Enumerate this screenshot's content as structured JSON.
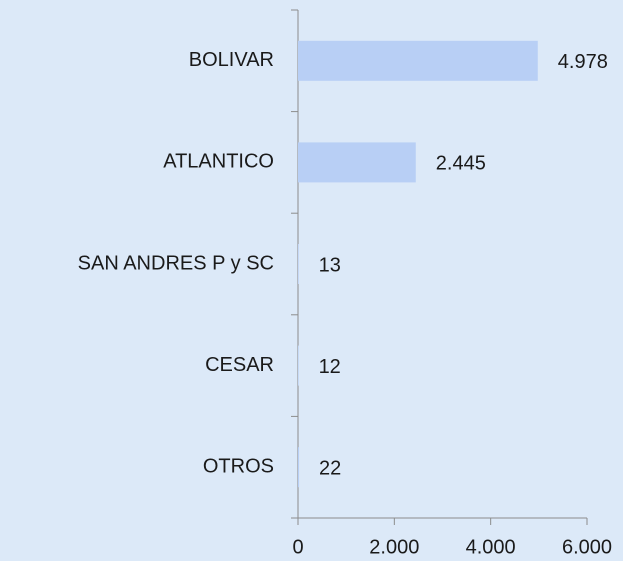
{
  "chart_data": {
    "type": "bar",
    "orientation": "horizontal",
    "categories": [
      "BOLIVAR",
      "ATLANTICO",
      "SAN ANDRES P y SC",
      "CESAR",
      "OTROS"
    ],
    "values": [
      4978,
      2445,
      13,
      12,
      22
    ],
    "value_labels": [
      "4.978",
      "2.445",
      "13",
      "12",
      "22"
    ],
    "color": "#b8cff5",
    "xlim": [
      0,
      6000
    ],
    "xticks": [
      0,
      {
        "value": 2000,
        "label": "2.000"
      },
      {
        "value": 4000,
        "label": "4.000"
      },
      {
        "value": 6000,
        "label": "6.000"
      }
    ],
    "grid": false
  }
}
